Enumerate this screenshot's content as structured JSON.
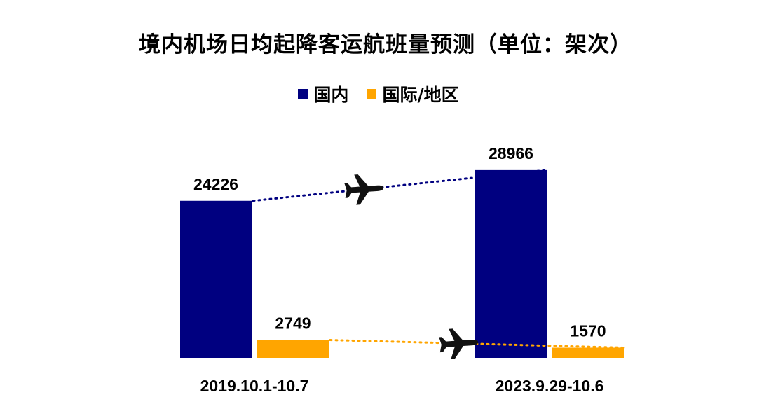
{
  "chart_data": {
    "type": "bar",
    "title": "境内机场日均起降客运航班量预测（单位：架次）",
    "categories": [
      "2019.10.1-10.7",
      "2023.9.29-10.6"
    ],
    "series": [
      {
        "name": "国内",
        "color": "#000080",
        "values": [
          24226,
          28966
        ]
      },
      {
        "name": "国际/地区",
        "color": "#FFA500",
        "values": [
          2749,
          1570
        ]
      }
    ],
    "ylim": [
      0,
      32000
    ],
    "grid": false,
    "legend_position": "top-center",
    "annotations": [
      {
        "type": "dotted-trend-line",
        "series": "国内",
        "color": "#000080",
        "icon": "airplane-icon"
      },
      {
        "type": "dotted-trend-line",
        "series": "国际/地区",
        "color": "#FFA500",
        "icon": "airplane-icon"
      }
    ]
  }
}
